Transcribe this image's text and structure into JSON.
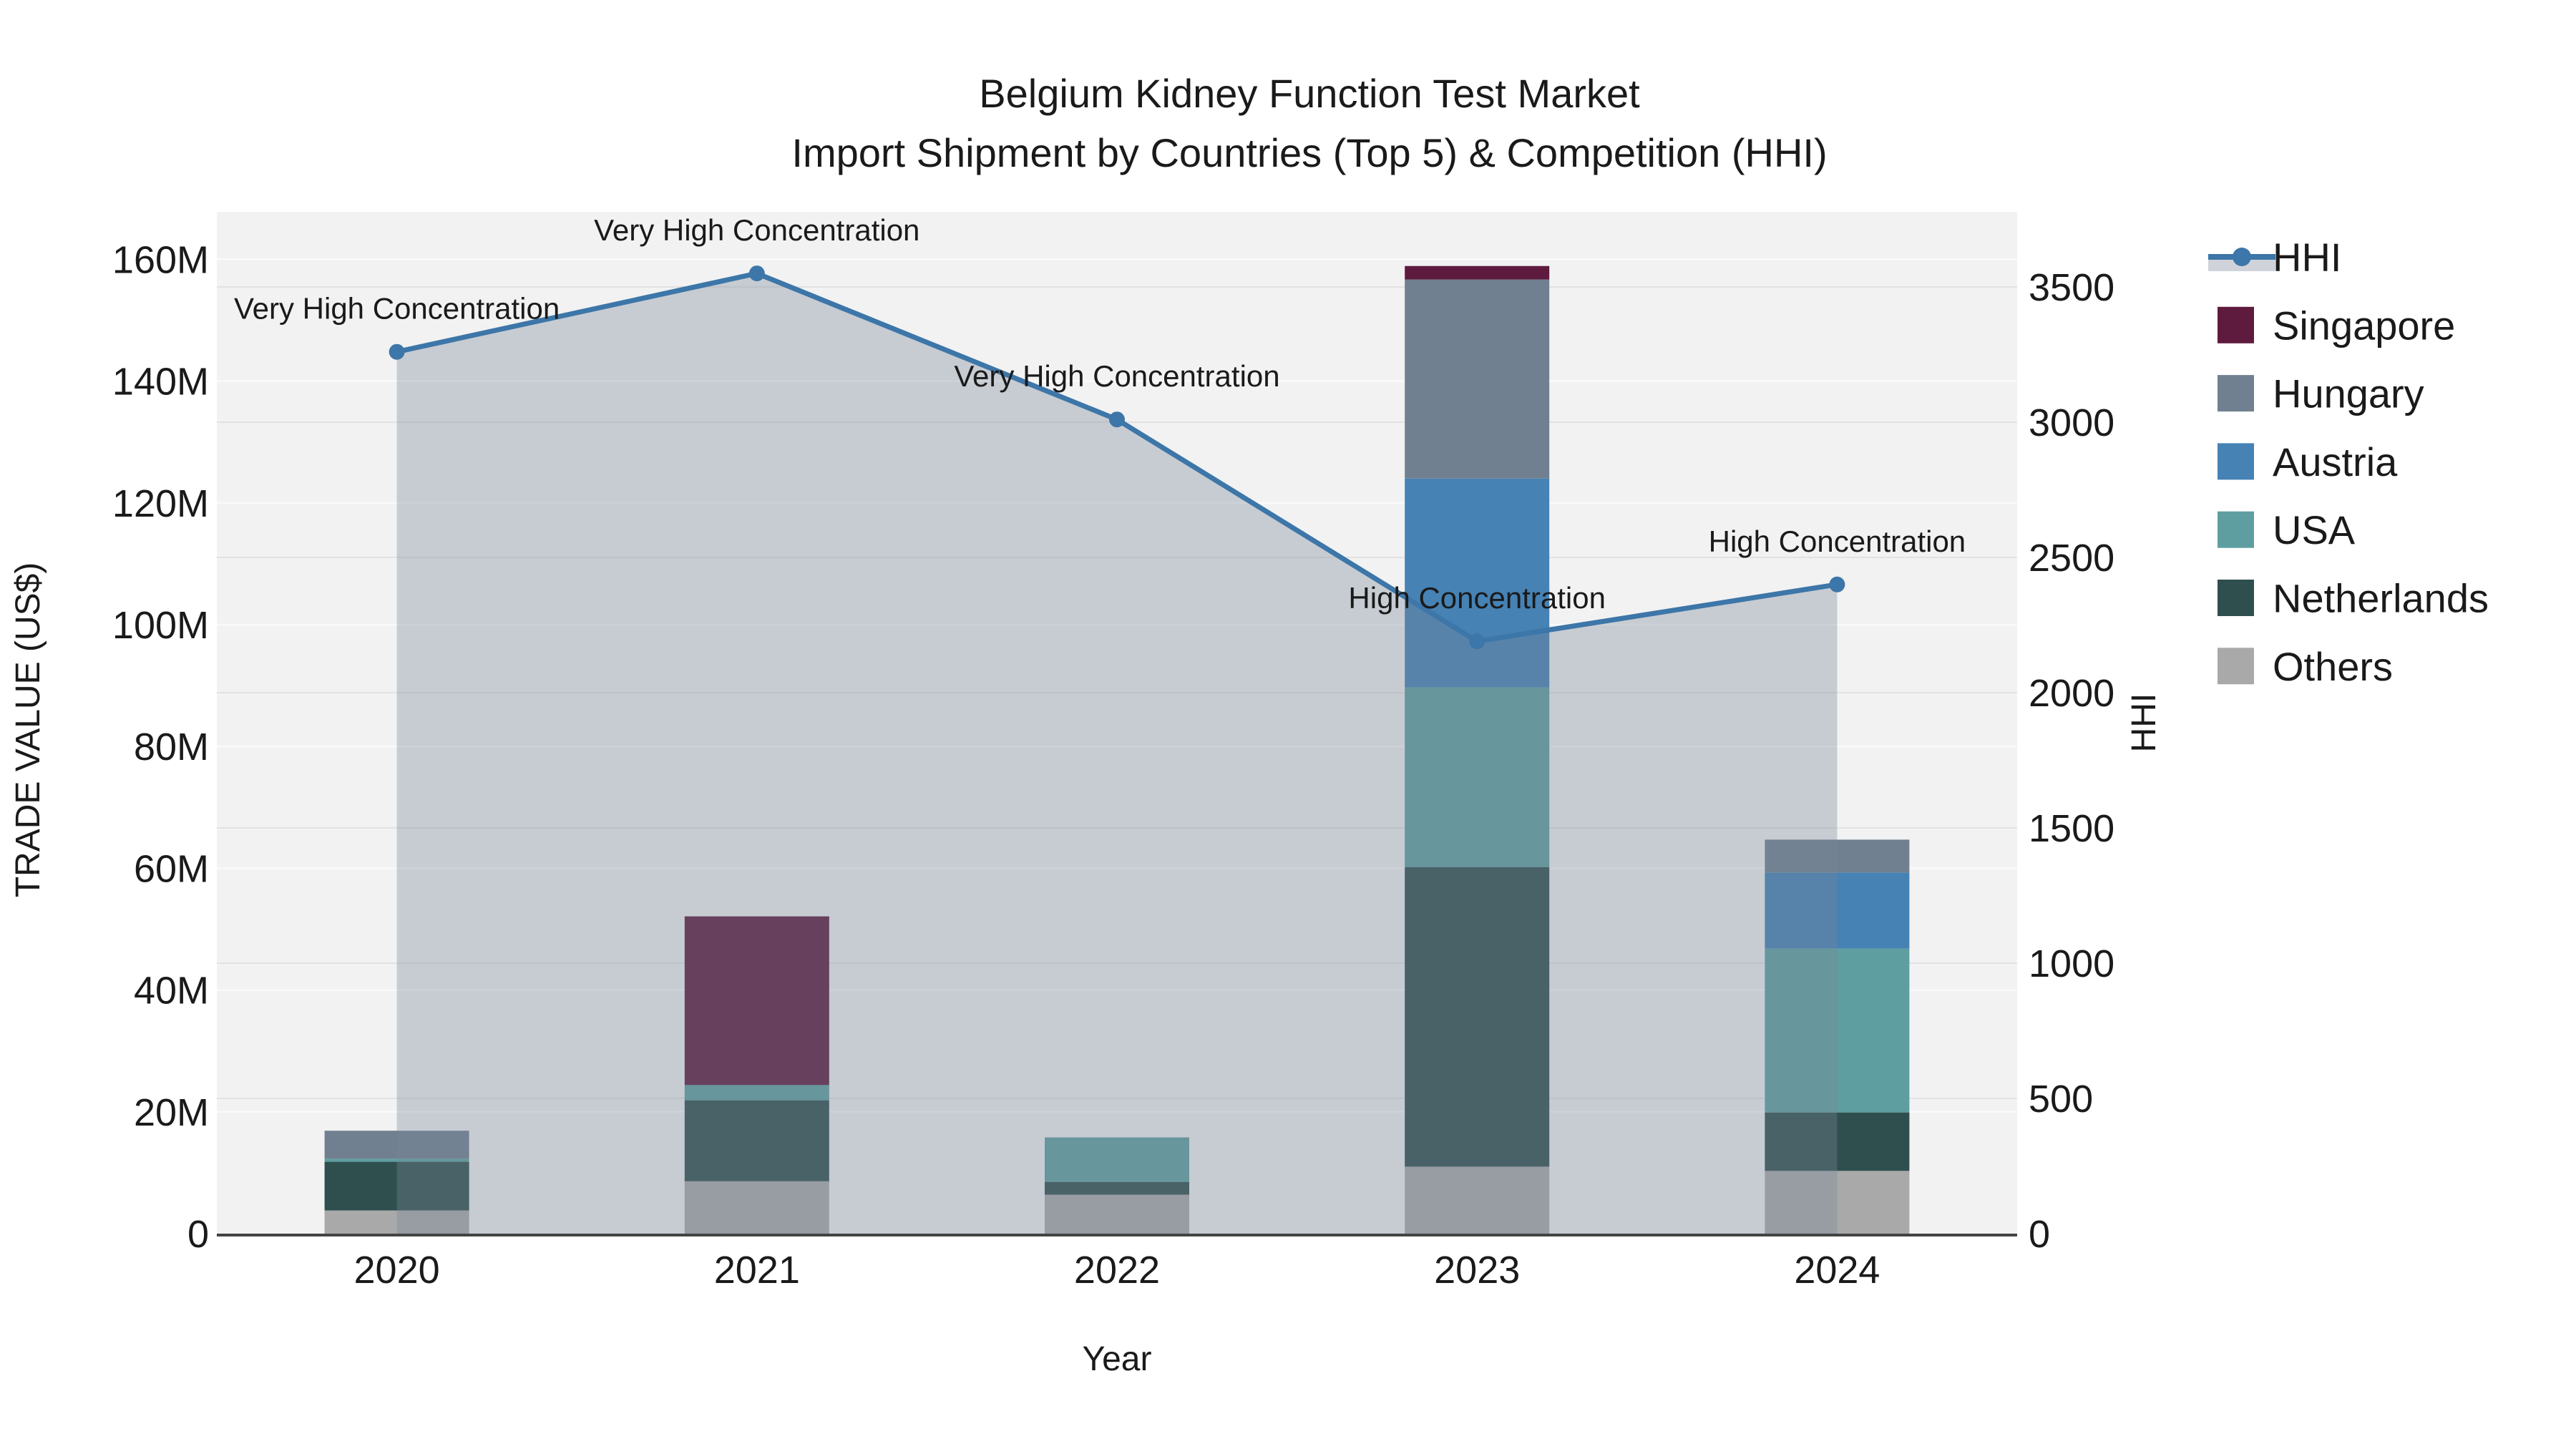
{
  "title": {
    "line1": "Belgium Kidney Function Test Market",
    "line2": "Import Shipment by Countries (Top 5) & Competition (HHI)"
  },
  "axes": {
    "x": {
      "title": "Year",
      "categories": [
        "2020",
        "2021",
        "2022",
        "2023",
        "2024"
      ]
    },
    "y_left": {
      "title": "TRADE VALUE (US$)",
      "tick_labels": [
        "0",
        "20M",
        "40M",
        "60M",
        "80M",
        "100M",
        "120M",
        "140M",
        "160M"
      ],
      "tick_values": [
        0,
        20,
        40,
        60,
        80,
        100,
        120,
        140,
        160
      ]
    },
    "y_right": {
      "title": "HHI",
      "tick_labels": [
        "0",
        "500",
        "1000",
        "1500",
        "2000",
        "2500",
        "3000",
        "3500"
      ],
      "tick_values": [
        0,
        500,
        1000,
        1500,
        2000,
        2500,
        3000,
        3500
      ]
    }
  },
  "chart_data": {
    "type": "bar+line",
    "categories": [
      "2020",
      "2021",
      "2022",
      "2023",
      "2024"
    ],
    "stack_order_bottom_to_top": [
      "Others",
      "Netherlands",
      "USA",
      "Austria",
      "Hungary",
      "Singapore"
    ],
    "series": [
      {
        "name": "Singapore",
        "color": "#5f1b3e",
        "values": [
          0,
          27.7,
          0,
          2.2,
          0
        ]
      },
      {
        "name": "Hungary",
        "color": "#708090",
        "values": [
          4.6,
          0,
          0,
          32.7,
          5.4
        ]
      },
      {
        "name": "Austria",
        "color": "#4682b4",
        "values": [
          0,
          0,
          0,
          34.3,
          12.5
        ]
      },
      {
        "name": "USA",
        "color": "#5f9ea0",
        "values": [
          0.5,
          2.5,
          7.3,
          29.5,
          26.9
        ]
      },
      {
        "name": "Netherlands",
        "color": "#2f4f4f",
        "values": [
          8.0,
          13.3,
          2.1,
          49.2,
          9.6
        ]
      },
      {
        "name": "Others",
        "color": "#a9a9a9",
        "values": [
          3.8,
          8.6,
          6.4,
          11.0,
          10.3
        ]
      }
    ],
    "bar_totals_millions": [
      16.9,
      52.1,
      15.8,
      158.9,
      64.7
    ],
    "hhi": {
      "name": "HHI",
      "values": [
        3260,
        3550,
        3010,
        2190,
        2400
      ],
      "line_color": "#3d76a8",
      "area_fill": "rgba(119,136,153,0.35)"
    },
    "annotations": [
      {
        "year": "2020",
        "text": "Very High Concentration"
      },
      {
        "year": "2021",
        "text": "Very High Concentration"
      },
      {
        "year": "2022",
        "text": "Very High Concentration"
      },
      {
        "year": "2023",
        "text": "High Concentration"
      },
      {
        "year": "2024",
        "text": "High Concentration"
      }
    ],
    "ylim_left_millions": [
      0,
      160
    ],
    "ylim_right_hhi": [
      0,
      3500
    ],
    "grid": "on",
    "legend_position": "right"
  },
  "legend": {
    "items": [
      {
        "label": "HHI",
        "type": "line",
        "color": "#3d76a8"
      },
      {
        "label": "Singapore",
        "type": "swatch",
        "color": "#5f1b3e"
      },
      {
        "label": "Hungary",
        "type": "swatch",
        "color": "#708090"
      },
      {
        "label": "Austria",
        "type": "swatch",
        "color": "#4682b4"
      },
      {
        "label": "USA",
        "type": "swatch",
        "color": "#5f9ea0"
      },
      {
        "label": "Netherlands",
        "type": "swatch",
        "color": "#2f4f4f"
      },
      {
        "label": "Others",
        "type": "swatch",
        "color": "#a9a9a9"
      }
    ]
  },
  "display": {
    "plot_background": "#f2f2f2",
    "money_gridline_color": "#fafafa",
    "hhi_gridline_color": "#e2e2e2",
    "axis_line_color": "#444444",
    "text_color": "#1a1a1a"
  }
}
